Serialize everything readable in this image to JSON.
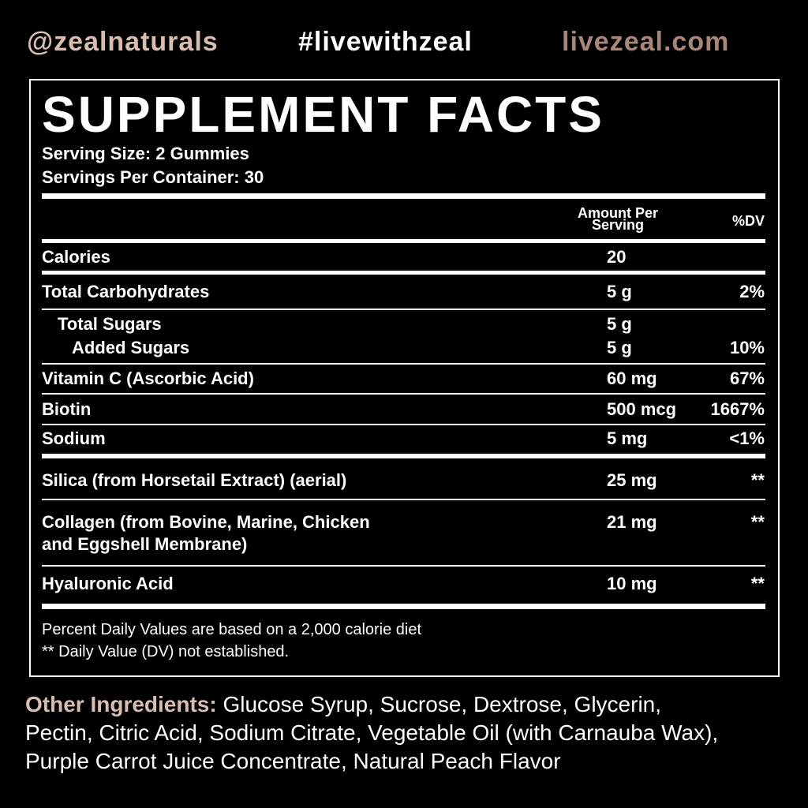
{
  "header": {
    "handle": "@zealnaturals",
    "hashtag": "#livewithzeal",
    "website": "livezeal.com"
  },
  "panel": {
    "title": "SUPPLEMENT FACTS",
    "serving_size": "Serving Size: 2 Gummies",
    "servings_per_container": "Servings Per Container: 30",
    "columns": [
      "Amount Per Serving",
      "%DV"
    ],
    "rows": [
      {
        "name": "Calories",
        "amount": "20"
      },
      {
        "name": "Total Carbohydrates",
        "amount": "5 g",
        "dv": "2%"
      },
      {
        "name": "Total Sugars",
        "amount": "5 g"
      },
      {
        "name": "Added Sugars",
        "amount": "5 g",
        "dv": "10%"
      },
      {
        "name": "Vitamin C (Ascorbic Acid)",
        "amount": "60 mg",
        "dv": "67%"
      },
      {
        "name": "Biotin",
        "amount": "500 mcg",
        "dv": "1667%"
      },
      {
        "name": "Sodium",
        "amount": "5 mg",
        "dv": "<1%"
      },
      {
        "name": "Silica (from Horsetail Extract) (aerial)",
        "amount": "25 mg",
        "dv": "**"
      },
      {
        "name": [
          "Collagen (from Bovine, Marine, Chicken",
          "and Eggshell Membrane)"
        ],
        "amount": "21 mg",
        "dv": "**"
      },
      {
        "name": "Hyaluronic Acid",
        "amount": "10 mg",
        "dv": "**"
      }
    ],
    "footnotes": [
      "Percent Daily Values are based on a 2,000 calorie diet",
      "** Daily Value (DV) not established."
    ]
  },
  "other_ingredients": {
    "label": "Other Ingredients:",
    "lines": [
      "Glucose Syrup, Sucrose, Dextrose, Glycerin,",
      "Pectin, Citric Acid, Sodium Citrate, Vegetable Oil (with Carnauba Wax),",
      "Purple Carrot Juice Concentrate, Natural Peach Flavor"
    ]
  }
}
